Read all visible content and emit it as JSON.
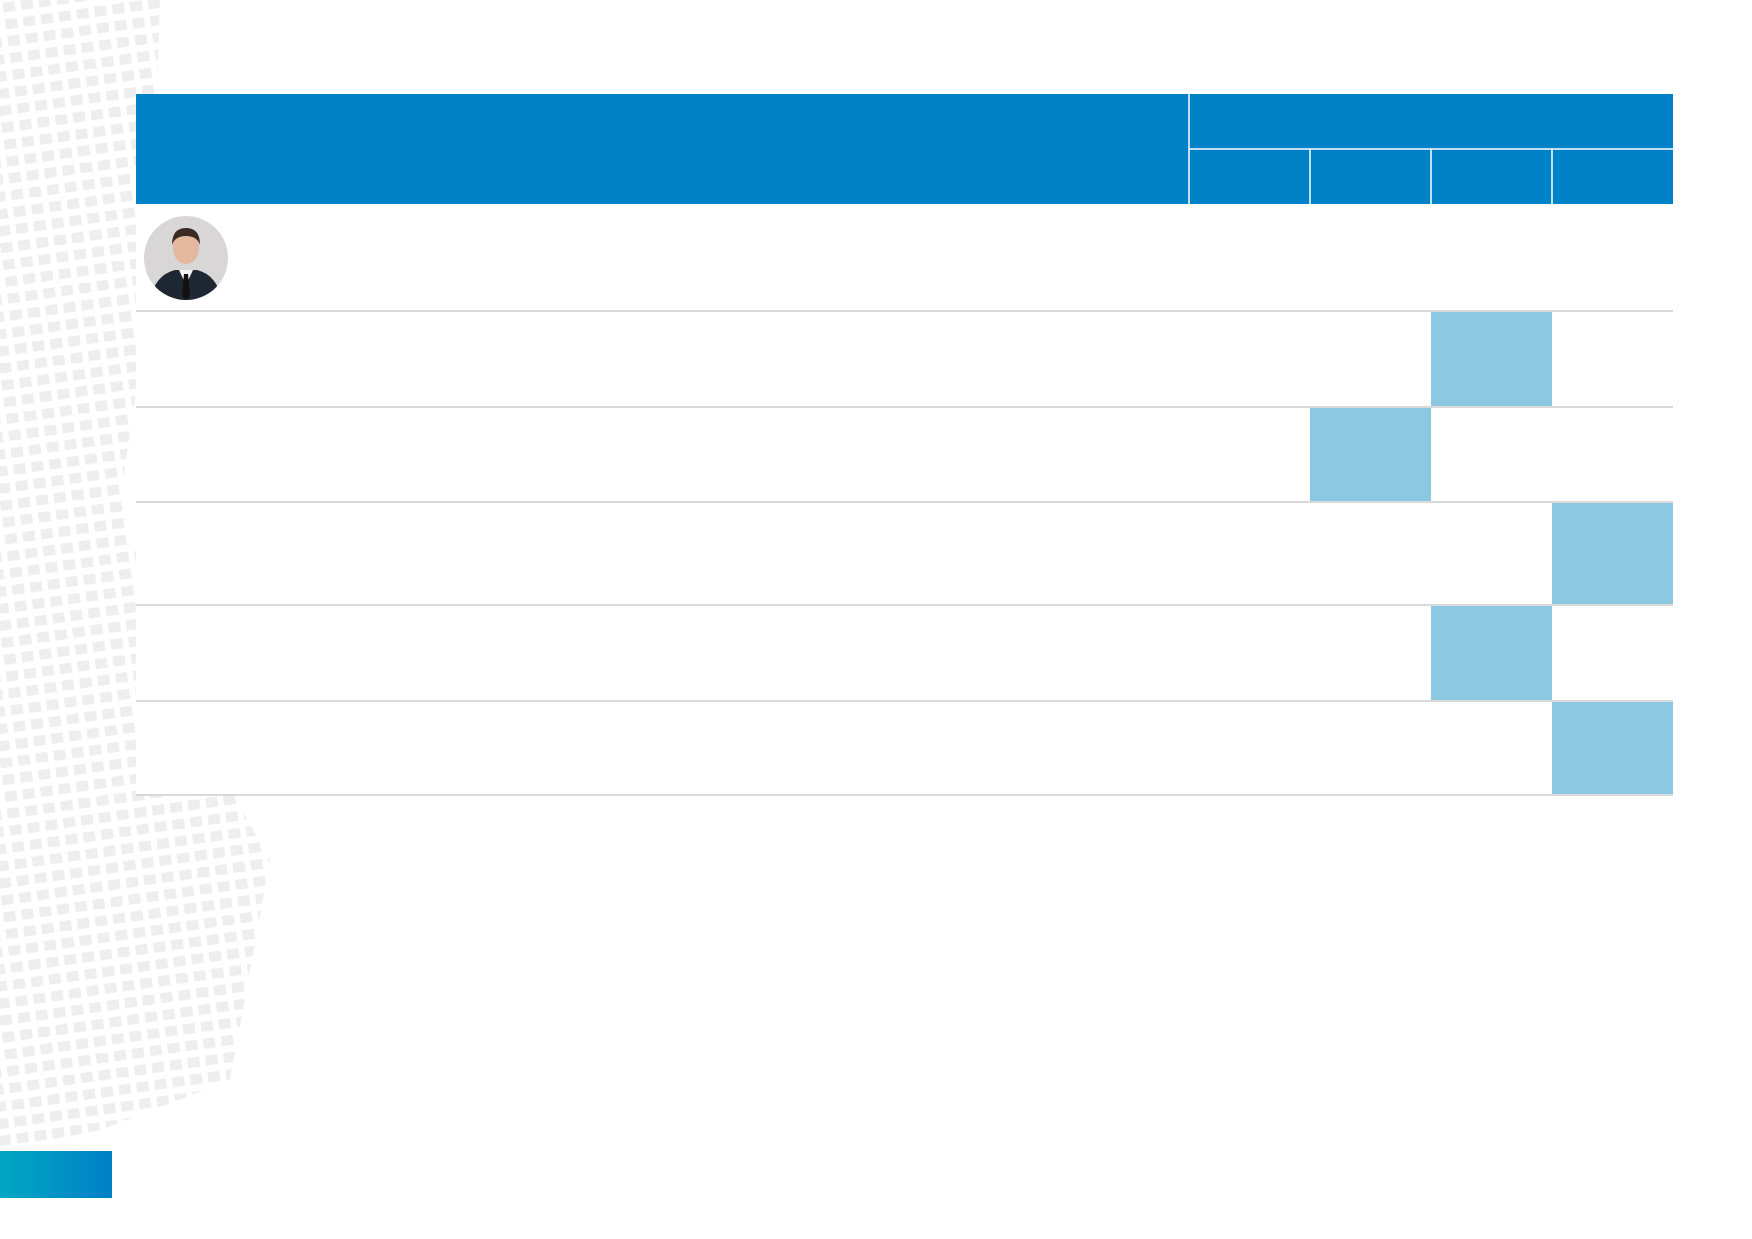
{
  "table": {
    "header_color": "#0082c8",
    "highlight_color": "#8cc8e2",
    "rule_color": "#d9d9d9"
  }
}
